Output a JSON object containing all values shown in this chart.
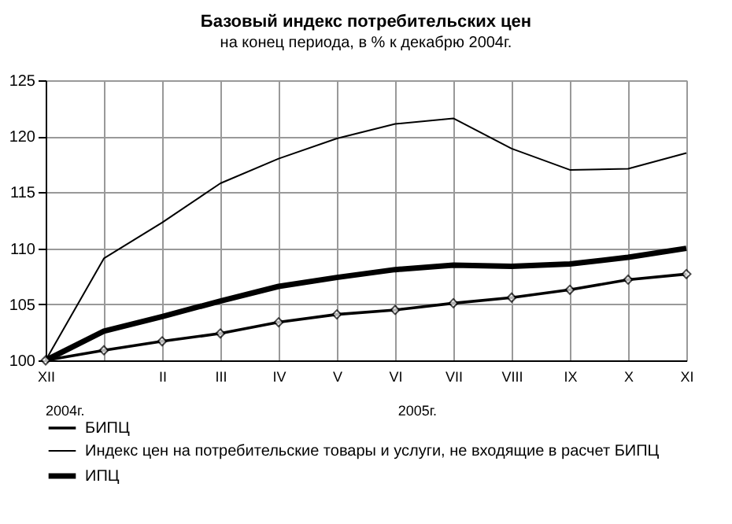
{
  "chart_data": {
    "type": "line",
    "title": "Базовый индекс потребительских цен",
    "subtitle": "на конец периода, в % к декабрю 2004г.",
    "categories": [
      "XII",
      null,
      "II",
      "III",
      "IV",
      "V",
      "VI",
      "VII",
      "VIII",
      "IX",
      "X",
      "XI"
    ],
    "series": [
      {
        "name": "БИПЦ",
        "color": "#000000",
        "marker": "diamond",
        "values": [
          100,
          100.9,
          101.7,
          102.4,
          103.4,
          104.1,
          104.5,
          105.1,
          105.6,
          106.3,
          107.2,
          107.7
        ]
      },
      {
        "name": "Индекс цен на потребительские товары и услуги, не входящие в расчет БИПЦ",
        "color": "#000000",
        "marker": "none",
        "values": [
          100,
          109.1,
          112.3,
          115.8,
          118.0,
          119.8,
          121.1,
          121.6,
          118.9,
          117.0,
          117.1,
          118.5
        ]
      },
      {
        "name": "ИПЦ",
        "color": "#000000",
        "marker": "none",
        "values": [
          100,
          102.6,
          103.9,
          105.3,
          106.6,
          107.4,
          108.1,
          108.5,
          108.4,
          108.6,
          109.2,
          110.0
        ]
      }
    ],
    "ylim": [
      100,
      125
    ],
    "yticks": [
      100,
      105,
      110,
      115,
      120,
      125
    ],
    "grid": true,
    "legend": "bottom",
    "line_style": "solid",
    "annotations": [
      "2004г.",
      "2005г."
    ]
  }
}
